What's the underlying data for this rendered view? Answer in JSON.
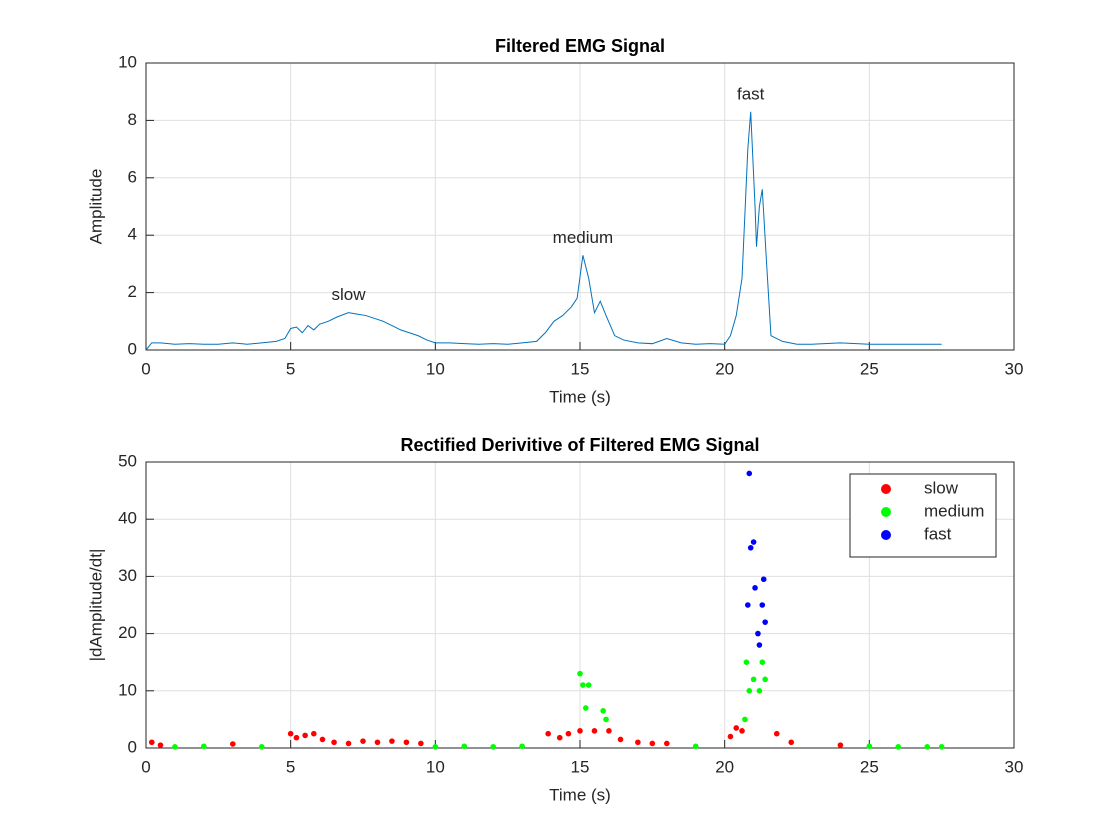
{
  "chart_data": [
    {
      "type": "line",
      "title": "Filtered EMG Signal",
      "x_label": "Time (s)",
      "y_label": "Amplitude",
      "xlim": [
        0,
        30
      ],
      "ylim": [
        0,
        10
      ],
      "xticks": [
        0,
        5,
        10,
        15,
        20,
        25,
        30
      ],
      "yticks": [
        0,
        2,
        4,
        6,
        8,
        10
      ],
      "grid": true,
      "series": [
        {
          "name": "Filtered EMG",
          "color": "#0072bd",
          "x": [
            0,
            0.2,
            0.5,
            1,
            1.5,
            2,
            2.5,
            3,
            3.5,
            4,
            4.5,
            4.8,
            5,
            5.2,
            5.4,
            5.6,
            5.8,
            6,
            6.3,
            6.6,
            7,
            7.3,
            7.6,
            7.9,
            8.2,
            8.5,
            8.8,
            9.1,
            9.4,
            9.7,
            10,
            10.5,
            11,
            11.5,
            12,
            12.5,
            13,
            13.5,
            13.8,
            14.1,
            14.4,
            14.7,
            14.9,
            15.1,
            15.3,
            15.5,
            15.7,
            15.9,
            16.2,
            16.5,
            17,
            17.5,
            18,
            18.5,
            19,
            19.5,
            20,
            20.2,
            20.4,
            20.6,
            20.8,
            20.9,
            21.05,
            21.1,
            21.2,
            21.3,
            21.45,
            21.6,
            21.8,
            22,
            22.5,
            23,
            24,
            25,
            26,
            27,
            27.5
          ],
          "values": [
            0,
            0.25,
            0.25,
            0.2,
            0.22,
            0.2,
            0.2,
            0.25,
            0.2,
            0.25,
            0.3,
            0.4,
            0.75,
            0.8,
            0.6,
            0.85,
            0.7,
            0.9,
            1.0,
            1.15,
            1.3,
            1.25,
            1.2,
            1.1,
            1.0,
            0.85,
            0.7,
            0.6,
            0.5,
            0.35,
            0.25,
            0.25,
            0.22,
            0.2,
            0.22,
            0.2,
            0.25,
            0.3,
            0.6,
            1.0,
            1.2,
            1.5,
            1.8,
            3.3,
            2.5,
            1.3,
            1.7,
            1.2,
            0.5,
            0.35,
            0.25,
            0.22,
            0.4,
            0.25,
            0.2,
            0.22,
            0.2,
            0.5,
            1.2,
            2.5,
            7.0,
            8.3,
            5.0,
            3.6,
            5.0,
            5.6,
            3.0,
            0.5,
            0.4,
            0.3,
            0.2,
            0.2,
            0.25,
            0.2,
            0.2,
            0.2,
            0.2
          ]
        }
      ],
      "annotations": [
        {
          "text": "slow",
          "x": 7,
          "y": 1.3
        },
        {
          "text": "medium",
          "x": 15.1,
          "y": 3.3
        },
        {
          "text": "fast",
          "x": 20.9,
          "y": 8.3
        }
      ]
    },
    {
      "type": "scatter",
      "title": "Rectified Derivitive of Filtered EMG Signal",
      "x_label": "Time (s)",
      "y_label": "|dAmplitude/dt|",
      "xlim": [
        0,
        30
      ],
      "ylim": [
        0,
        50
      ],
      "xticks": [
        0,
        5,
        10,
        15,
        20,
        25,
        30
      ],
      "yticks": [
        0,
        10,
        20,
        30,
        40,
        50
      ],
      "grid": true,
      "legend": "northeast",
      "series": [
        {
          "name": "slow",
          "color": "#ff0000",
          "x": [
            0.2,
            0.5,
            3,
            5,
            5.2,
            5.5,
            5.8,
            6.1,
            6.5,
            7,
            7.5,
            8,
            8.5,
            9,
            9.5,
            13.9,
            14.3,
            14.6,
            15,
            15.5,
            16,
            16.4,
            17,
            17.5,
            18,
            20.2,
            20.4,
            20.6,
            21.8,
            22.3,
            24
          ],
          "values": [
            1,
            0.5,
            0.7,
            2.5,
            1.8,
            2.2,
            2.5,
            1.5,
            1,
            0.8,
            1.2,
            1,
            1.2,
            1,
            0.8,
            2.5,
            1.8,
            2.5,
            3,
            3,
            3,
            1.5,
            1,
            0.8,
            0.8,
            2,
            3.5,
            3,
            2.5,
            1,
            0.5
          ]
        },
        {
          "name": "medium",
          "color": "#00ff00",
          "x": [
            1,
            2,
            4,
            10,
            11,
            12,
            13,
            15,
            15.1,
            15.2,
            15.3,
            15.8,
            15.9,
            19,
            20.7,
            20.75,
            20.85,
            21,
            21.2,
            21.3,
            21.4,
            25,
            26,
            27,
            27.5
          ],
          "values": [
            0.2,
            0.3,
            0.2,
            0.2,
            0.3,
            0.2,
            0.3,
            13,
            11,
            7,
            11,
            6.5,
            5,
            0.3,
            5,
            15,
            10,
            12,
            10,
            15,
            12,
            0.3,
            0.2,
            0.2,
            0.2
          ]
        },
        {
          "name": "fast",
          "color": "#0000ff",
          "x": [
            20.8,
            20.85,
            20.9,
            21,
            21.05,
            21.15,
            21.2,
            21.3,
            21.35,
            21.4
          ],
          "values": [
            25,
            48,
            35,
            36,
            28,
            20,
            18,
            25,
            29.5,
            22
          ]
        }
      ]
    }
  ]
}
